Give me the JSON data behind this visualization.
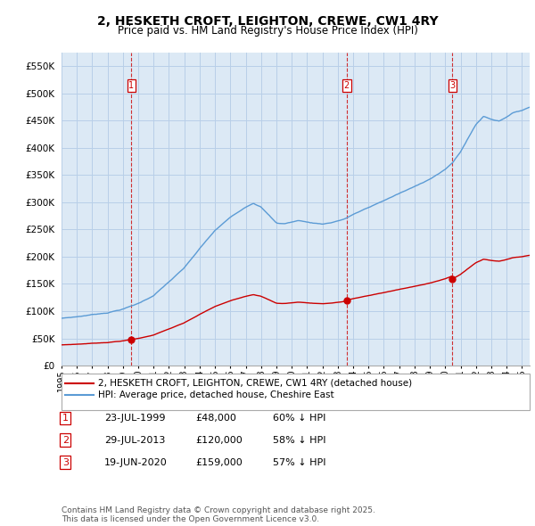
{
  "title": "2, HESKETH CROFT, LEIGHTON, CREWE, CW1 4RY",
  "subtitle": "Price paid vs. HM Land Registry's House Price Index (HPI)",
  "title_fontsize": 10,
  "subtitle_fontsize": 8.5,
  "ylim": [
    0,
    575000
  ],
  "yticks": [
    0,
    50000,
    100000,
    150000,
    200000,
    250000,
    300000,
    350000,
    400000,
    450000,
    500000,
    550000
  ],
  "ytick_labels": [
    "£0",
    "£50K",
    "£100K",
    "£150K",
    "£200K",
    "£250K",
    "£300K",
    "£350K",
    "£400K",
    "£450K",
    "£500K",
    "£550K"
  ],
  "red_color": "#cc0000",
  "blue_color": "#5b9bd5",
  "background_color": "#ffffff",
  "chart_bg_color": "#dce9f5",
  "grid_color": "#b8cfe8",
  "sale_dates": [
    1999.56,
    2013.57,
    2020.47
  ],
  "sale_prices": [
    48000,
    120000,
    159000
  ],
  "sale_labels": [
    "1",
    "2",
    "3"
  ],
  "vline_color": "#cc0000",
  "legend_label_red": "2, HESKETH CROFT, LEIGHTON, CREWE, CW1 4RY (detached house)",
  "legend_label_blue": "HPI: Average price, detached house, Cheshire East",
  "table_data": [
    [
      "1",
      "23-JUL-1999",
      "£48,000",
      "60% ↓ HPI"
    ],
    [
      "2",
      "29-JUL-2013",
      "£120,000",
      "58% ↓ HPI"
    ],
    [
      "3",
      "19-JUN-2020",
      "£159,000",
      "57% ↓ HPI"
    ]
  ],
  "footnote": "Contains HM Land Registry data © Crown copyright and database right 2025.\nThis data is licensed under the Open Government Licence v3.0.",
  "xmin": 1995.0,
  "xmax": 2025.5,
  "hpi_key_years": [
    1995.0,
    1996.0,
    1997.0,
    1998.0,
    1999.0,
    2000.0,
    2001.0,
    2002.0,
    2003.0,
    2004.0,
    2005.0,
    2006.0,
    2007.0,
    2007.5,
    2008.0,
    2008.5,
    2009.0,
    2009.5,
    2010.0,
    2010.5,
    2011.0,
    2011.5,
    2012.0,
    2012.5,
    2013.0,
    2013.5,
    2014.0,
    2015.0,
    2016.0,
    2017.0,
    2018.0,
    2019.0,
    2020.0,
    2020.5,
    2021.0,
    2021.5,
    2022.0,
    2022.5,
    2023.0,
    2023.5,
    2024.0,
    2024.5,
    2025.0,
    2025.5
  ],
  "hpi_key_values": [
    87000,
    90000,
    94000,
    98000,
    105000,
    115000,
    130000,
    155000,
    180000,
    215000,
    248000,
    272000,
    292000,
    300000,
    293000,
    278000,
    263000,
    262000,
    265000,
    268000,
    265000,
    263000,
    262000,
    264000,
    268000,
    272000,
    280000,
    292000,
    305000,
    318000,
    330000,
    345000,
    362000,
    375000,
    395000,
    420000,
    445000,
    460000,
    455000,
    452000,
    460000,
    468000,
    472000,
    478000
  ]
}
